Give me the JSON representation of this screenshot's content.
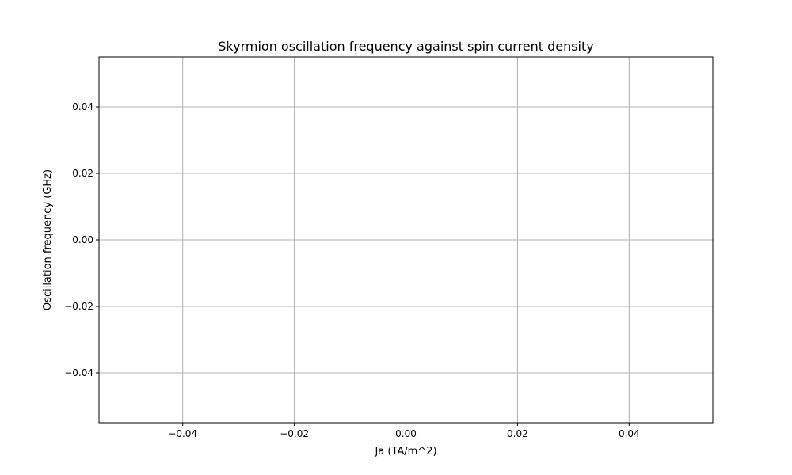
{
  "chart_data": {
    "type": "line",
    "title": "Skyrmion oscillation frequency against spin current density",
    "xlabel": "Ja (TA/m^2)",
    "ylabel": "Oscillation frequency (GHz)",
    "xlim": [
      -0.055,
      0.055
    ],
    "ylim": [
      -0.055,
      0.055
    ],
    "xticks": [
      -0.04,
      -0.02,
      0.0,
      0.02,
      0.04
    ],
    "yticks": [
      -0.04,
      -0.02,
      0.0,
      0.02,
      0.04
    ],
    "xtick_labels": [
      "−0.04",
      "−0.02",
      "0.00",
      "0.02",
      "0.04"
    ],
    "ytick_labels": [
      "−0.04",
      "−0.02",
      "0.00",
      "0.02",
      "0.04"
    ],
    "grid": true,
    "series": [
      {
        "x": [],
        "y": []
      }
    ],
    "colors": {
      "grid": "#b0b0b0",
      "axes": "#000000",
      "background": "#ffffff"
    }
  }
}
